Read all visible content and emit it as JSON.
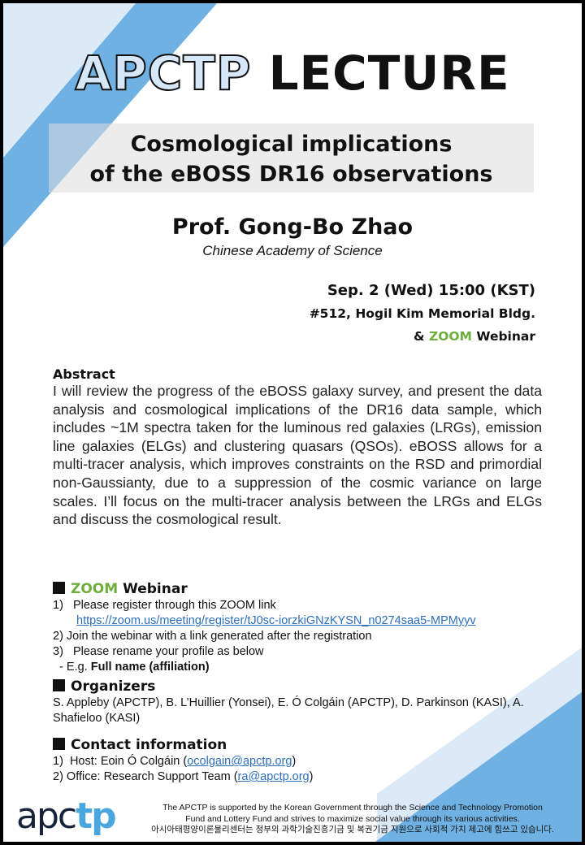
{
  "header": {
    "title_outline": "APCTP",
    "title_bold": "LECTURE"
  },
  "talk": {
    "title_line1": "Cosmological implications",
    "title_line2": "of the eBOSS DR16 observations",
    "speaker": "Prof. Gong-Bo Zhao",
    "affiliation": "Chinese Academy of Science",
    "datetime": "Sep. 2 (Wed) 15:00 (KST)",
    "venue": "#512, Hogil Kim Memorial Bldg.",
    "venue2_prefix": "& ",
    "venue2_zoom": "ZOOM",
    "venue2_suffix": " Webinar"
  },
  "abstract": {
    "heading": "Abstract",
    "text": "I will review the progress of the eBOSS galaxy survey, and present the data analysis and cosmological implications of the DR16 data sample, which includes ~1M spectra taken for the luminous red galaxies (LRGs), emission line galaxies (ELGs) and clustering quasars (QSOs). eBOSS allows for a multi-tracer analysis, which improves constraints on the RSD and primordial non-Gaussianty, due to a suppression of the cosmic variance on large scales. I’ll focus on the multi-tracer analysis between the LRGs and ELGs and discuss the cosmological result."
  },
  "webinar": {
    "heading_zoom": "ZOOM",
    "heading_rest": " Webinar",
    "step1": "1)   Please register through this ZOOM link",
    "link": "https://zoom.us/meeting/register/tJ0sc-iorzkiGNzKYSN_n0274saa5-MPMyyv",
    "step2": "2) Join the webinar with a link generated after the registration",
    "step3": "3)   Please rename your profile as below",
    "example_prefix": "  - E.g. ",
    "example_bold": "Full name (affiliation)"
  },
  "organizers": {
    "heading": "Organizers",
    "text": "S. Appleby (APCTP), B. L’Huillier (Yonsei), E. Ó Colgáin (APCTP), D. Parkinson (KASI), A. Shafieloo (KASI)"
  },
  "contact": {
    "heading": "Contact information",
    "host_prefix": "1)  Host: Eoin Ó Colgáin (",
    "host_email": "ocolgain@apctp.org",
    "office_prefix": "2) Office: Research Support Team (",
    "office_email": "ra@apctp.org",
    "close": ")"
  },
  "footer": {
    "logo_a": "apc",
    "logo_b": "tp",
    "line1": "The APCTP is supported by the Korean Government through the Science and Technology Promotion",
    "line2": "Fund and Lottery Fund and strives to maximize social value through its various activities.",
    "line3": "아시아태평양이론물리센터는 정부의 과학기술진흥기금 및 복권기금 지원으로 사회적 가치 제고에 힘쓰고 있습니다."
  },
  "colors": {
    "light_blue": "#dce9f6",
    "blue": "#6fb1e2",
    "zoom_green": "#6fae3e",
    "link": "#2e6fb8"
  }
}
